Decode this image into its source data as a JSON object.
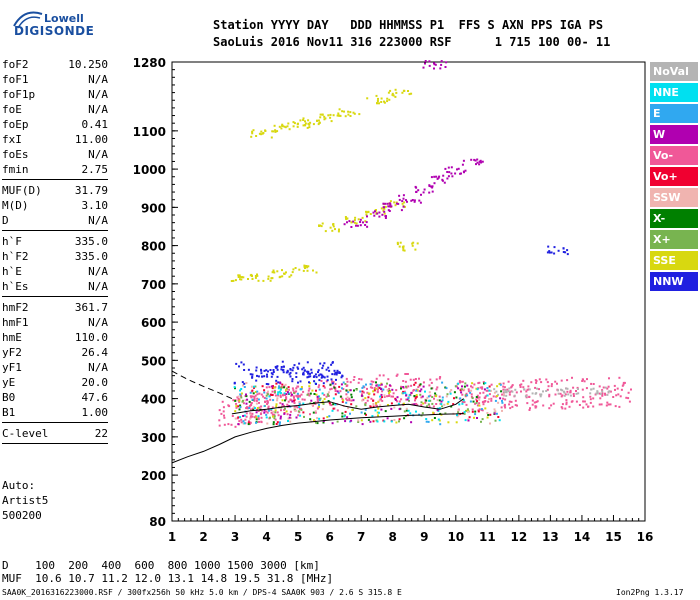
{
  "logo": {
    "line1": "Lowell",
    "line2": "DIGISONDE"
  },
  "header": {
    "line1": "Station YYYY DAY   DDD HHMMSS P1  FFS S AXN PPS IGA PS",
    "line2": "SaoLuis 2016 Nov11 316 223000 RSF      1 715 100 00- 11"
  },
  "params": [
    {
      "name": "foF2",
      "value": "10.250"
    },
    {
      "name": "foF1",
      "value": "N/A"
    },
    {
      "name": "foF1p",
      "value": "N/A"
    },
    {
      "name": "foE",
      "value": "N/A"
    },
    {
      "name": "foEp",
      "value": "0.41"
    },
    {
      "name": "fxI",
      "value": "11.00"
    },
    {
      "name": "foEs",
      "value": "N/A"
    },
    {
      "name": "fmin",
      "value": "2.75"
    },
    {
      "sep": true
    },
    {
      "name": "MUF(D)",
      "value": "31.79"
    },
    {
      "name": "M(D)",
      "value": "3.10"
    },
    {
      "name": "D",
      "value": "N/A"
    },
    {
      "sep": true
    },
    {
      "name": "h`F",
      "value": "335.0"
    },
    {
      "name": "h`F2",
      "value": "335.0"
    },
    {
      "name": "h`E",
      "value": "N/A"
    },
    {
      "name": "h`Es",
      "value": "N/A"
    },
    {
      "sep": true
    },
    {
      "name": "hmF2",
      "value": "361.7"
    },
    {
      "name": "hmF1",
      "value": "N/A"
    },
    {
      "name": "hmE",
      "value": "110.0"
    },
    {
      "name": "yF2",
      "value": "26.4"
    },
    {
      "name": "yF1",
      "value": "N/A"
    },
    {
      "name": "yE",
      "value": "20.0"
    },
    {
      "name": "B0",
      "value": "47.6"
    },
    {
      "name": "B1",
      "value": "1.00"
    },
    {
      "sep": true
    },
    {
      "name": "C-level",
      "value": "22"
    },
    {
      "sep": true
    }
  ],
  "auto": {
    "line1": "Auto:",
    "line2": "Artist5",
    "line3": "500200"
  },
  "legend": [
    {
      "label": "NoVal",
      "color": "#b4b4b4"
    },
    {
      "label": "NNE",
      "color": "#00e0f0"
    },
    {
      "label": "E",
      "color": "#30a8f0"
    },
    {
      "label": "W",
      "color": "#b000b0"
    },
    {
      "label": "Vo-",
      "color": "#f05898"
    },
    {
      "label": "Vo+",
      "color": "#f00030"
    },
    {
      "label": "SSW",
      "color": "#f0b4b0"
    },
    {
      "label": "X-",
      "color": "#008000"
    },
    {
      "label": "X+",
      "color": "#78b450"
    },
    {
      "label": "SSE",
      "color": "#d8d810"
    },
    {
      "label": "NNW",
      "color": "#2020e0"
    }
  ],
  "footer": {
    "d_line": "D    100  200  400  600  800 1000 1500 3000 [km]",
    "muf_line": "MUF  10.6 10.7 11.2 12.0 13.1 14.8 19.5 31.8 [MHz]",
    "file_line": "SAA0K_2016316223000.RSF / 300fx256h 50 kHz 5.0 km / DPS-4 SAA0K 903 / 2.6 S 315.8 E",
    "version": "Ion2Png 1.3.17"
  },
  "chart_data": {
    "type": "scatter",
    "xlim": [
      1,
      16
    ],
    "ylim": [
      80,
      1280
    ],
    "x_ticks": [
      "1",
      "2",
      "3",
      "4",
      "5",
      "6",
      "7",
      "8",
      "9",
      "10",
      "11",
      "12",
      "13",
      "14",
      "15",
      "16"
    ],
    "y_ticks": [
      "80",
      "200",
      "300",
      "400",
      "500",
      "600",
      "700",
      "800",
      "900",
      "1000",
      "1100",
      "1280"
    ],
    "grid": false,
    "legend_placement": "right",
    "profile_line": [
      [
        1.0,
        232
      ],
      [
        1.5,
        248
      ],
      [
        2.0,
        262
      ],
      [
        2.5,
        280
      ],
      [
        3.0,
        300
      ],
      [
        3.5,
        312
      ],
      [
        4.0,
        322
      ],
      [
        4.5,
        330
      ],
      [
        5.0,
        336
      ],
      [
        5.5,
        340
      ],
      [
        6.0,
        344
      ],
      [
        6.5,
        347
      ],
      [
        7.0,
        350
      ],
      [
        7.5,
        352
      ],
      [
        8.0,
        354
      ],
      [
        8.5,
        356
      ],
      [
        9.0,
        357
      ],
      [
        9.5,
        359
      ],
      [
        10.0,
        360
      ],
      [
        10.25,
        361
      ]
    ],
    "trace_line": [
      [
        2.9,
        360
      ],
      [
        3.5,
        368
      ],
      [
        4.0,
        372
      ],
      [
        4.5,
        378
      ],
      [
        5.0,
        382
      ],
      [
        5.5,
        388
      ],
      [
        6.0,
        392
      ],
      [
        6.5,
        380
      ],
      [
        7.0,
        372
      ],
      [
        7.5,
        378
      ],
      [
        8.0,
        382
      ],
      [
        8.5,
        385
      ],
      [
        9.0,
        378
      ],
      [
        9.5,
        372
      ],
      [
        10.0,
        385
      ],
      [
        10.25,
        400
      ]
    ],
    "dashed_line": [
      [
        1.0,
        472
      ],
      [
        1.5,
        450
      ],
      [
        2.0,
        432
      ],
      [
        2.5,
        415
      ],
      [
        2.9,
        400
      ]
    ],
    "series": [
      {
        "name": "SSE",
        "points": [
          [
            3.8,
            1095
          ],
          [
            4.5,
            1110
          ],
          [
            5.0,
            1120
          ],
          [
            5.5,
            1128
          ],
          [
            6.0,
            1135
          ],
          [
            6.6,
            1150
          ],
          [
            7.5,
            1185
          ],
          [
            8.2,
            1200
          ],
          [
            3.2,
            715
          ],
          [
            3.8,
            720
          ],
          [
            4.5,
            730
          ],
          [
            5.2,
            740
          ],
          [
            6.0,
            850
          ],
          [
            6.8,
            870
          ],
          [
            7.5,
            890
          ],
          [
            8.0,
            910
          ],
          [
            8.5,
            800
          ]
        ]
      },
      {
        "name": "W",
        "points": [
          [
            6.8,
            860
          ],
          [
            7.5,
            885
          ],
          [
            8.0,
            905
          ],
          [
            8.5,
            925
          ],
          [
            9.0,
            950
          ],
          [
            9.5,
            975
          ],
          [
            10.0,
            1000
          ],
          [
            10.5,
            1020
          ],
          [
            9.3,
            1275
          ]
        ]
      },
      {
        "name": "NNW",
        "points": [
          [
            4.0,
            470
          ],
          [
            4.5,
            480
          ],
          [
            5.0,
            475
          ],
          [
            5.5,
            468
          ],
          [
            6.0,
            460
          ],
          [
            13.2,
            790
          ]
        ]
      },
      {
        "name": "Vo-",
        "points": [
          [
            3.0,
            360
          ],
          [
            3.5,
            375
          ],
          [
            4.0,
            385
          ],
          [
            4.5,
            395
          ],
          [
            5.0,
            400
          ],
          [
            6.0,
            410
          ],
          [
            7.0,
            420
          ],
          [
            8.0,
            430
          ],
          [
            9.0,
            420
          ],
          [
            10.5,
            410
          ],
          [
            11.2,
            405
          ],
          [
            12.0,
            410
          ],
          [
            13.0,
            415
          ],
          [
            14.0,
            418
          ],
          [
            15.0,
            420
          ]
        ]
      },
      {
        "name": "NoVal",
        "points": [
          [
            11.5,
            420
          ],
          [
            12.5,
            418
          ],
          [
            13.5,
            420
          ],
          [
            14.5,
            422
          ]
        ]
      }
    ]
  }
}
